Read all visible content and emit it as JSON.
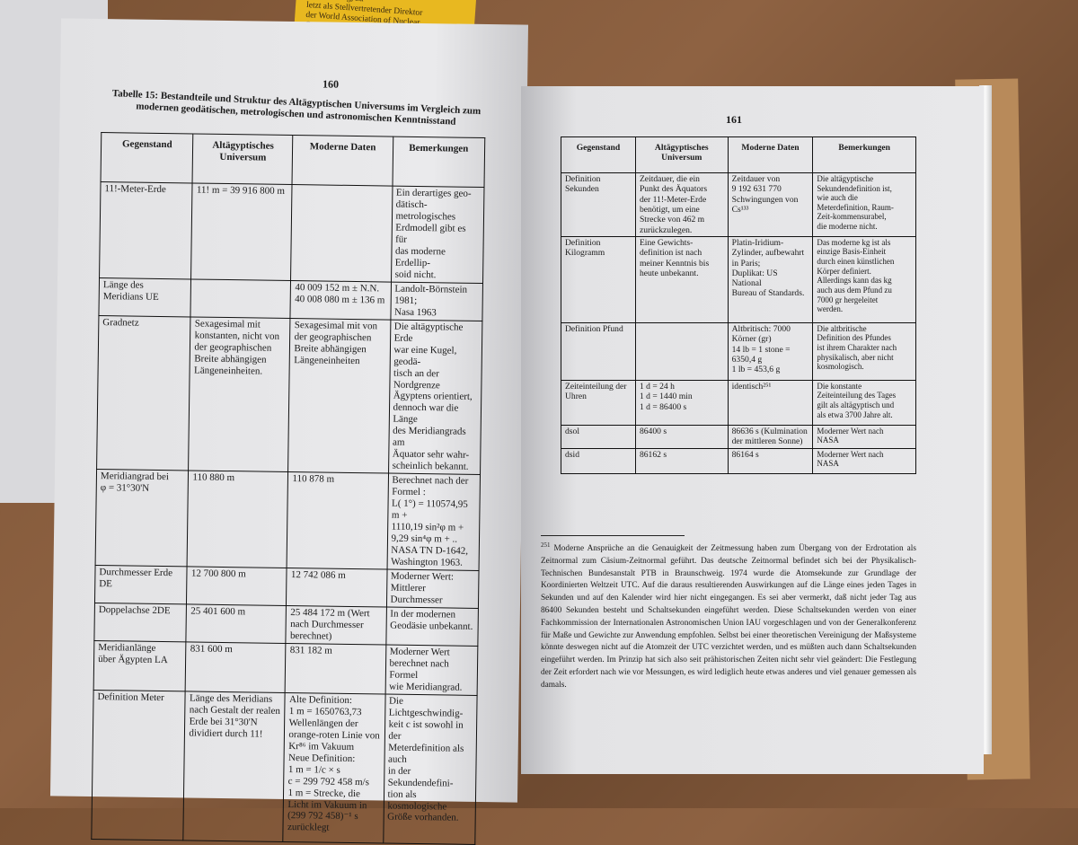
{
  "yellow_note": "...schaft tätig, zu-\nletzt als Stellvertretender Direktor\nder World Association of Nuclear\nOperators in London. Er ist Mit-\nglied nationaler und internationaler\nwissenschaftlicher Gesellschaften",
  "left_page": {
    "page_number": "160",
    "caption": "Tabelle 15: Bestandteile und Struktur des Altägyptischen Universums im Vergleich zum modernen geodätischen, metrologischen und astronomischen Kenntnisstand",
    "headers": [
      "Gegenstand",
      "Altägyptisches\nUniversum",
      "Moderne Daten",
      "Bemerkungen"
    ],
    "rows": [
      [
        "11!-Meter-Erde",
        "11! m = 39 916 800 m",
        "",
        "Ein derartiges geo-\ndätisch-metrologisches\nErdmodell gibt es für\ndas moderne Erdellip-\nsoid nicht."
      ],
      [
        "Länge des\nMeridians UE",
        "",
        "40 009 152 m ± N.N.\n40 008 080 m ± 136 m",
        "Landolt-Börnstein 1981;\nNasa 1963"
      ],
      [
        "Gradnetz",
        "Sexagesimal mit\nkonstanten, nicht von\nder geographischen\nBreite abhängigen\nLängeneinheiten.",
        "Sexagesimal mit von\nder geographischen\nBreite abhängigen\nLängeneinheiten",
        "Die altägyptische Erde\nwar eine Kugel, geodä-\ntisch an der Nordgrenze\nÄgyptens orientiert,\ndennoch war die Länge\ndes Meridiangrads am\nÄquator sehr wahr-\nscheinlich bekannt."
      ],
      [
        "Meridiangrad bei\nφ = 31°30'N",
        "110 880 m",
        "110 878 m",
        "Berechnet nach der\nFormel :\nL( 1°) = 110574,95 m +\n1110,19 sin²φ m +\n9,29 sin⁴φ m + ..\nNASA TN D-1642,\nWashington 1963."
      ],
      [
        "Durchmesser Erde\nDE",
        "12 700 800 m",
        "12 742 086 m",
        "Moderner Wert:\nMittlerer Durchmesser"
      ],
      [
        "Doppelachse 2DE",
        "25 401 600 m",
        "25 484 172 m (Wert\nnach Durchmesser\nberechnet)",
        "In der modernen\nGeodäsie unbekannt."
      ],
      [
        "Meridianlänge\nüber Ägypten LA",
        "831 600 m",
        "831 182 m",
        "Moderner Wert\nberechnet nach Formel\nwie Meridiangrad."
      ],
      [
        "Definition Meter",
        "Länge des Meridians\nnach Gestalt der realen\nErde bei 31°30'N\ndividiert durch 11!",
        "Alte Definition:\n1 m = 1650763,73\nWellenlängen der\norange-roten Linie von\nKr⁸⁶ im Vakuum\nNeue Definition:\n1 m = 1/c × s\nc = 299 792 458 m/s\n1 m = Strecke, die\nLicht im Vakuum in\n(299 792 458)⁻¹ s\nzurücklegt",
        "Die Lichtgeschwindig-\nkeit c ist sowohl in der\nMeterdefinition als auch\nin der Sekundendefini-\ntion als kosmologische\nGröße vorhanden."
      ]
    ]
  },
  "right_page": {
    "page_number": "161",
    "headers": [
      "Gegenstand",
      "Altägyptisches\nUniversum",
      "Moderne Daten",
      "Bemerkungen"
    ],
    "rows": [
      [
        "Definition\nSekunden",
        "Zeitdauer, die ein\nPunkt des Äquators\nder 11!-Meter-Erde\nbenötigt, um eine\nStrecke von 462 m\nzurückzulegen.",
        "Zeitdauer von\n9 192 631 770\nSchwingungen von\nCs¹³³",
        "Die altägyptische\nSekundendefinition ist,\nwie auch die\nMeterdefinition, Raum-\nZeit-kommensurabel,\ndie moderne nicht."
      ],
      [
        "Definition\nKilogramm",
        "Eine Gewichts-\ndefinition ist nach\nmeiner Kenntnis bis\nheute unbekannt.",
        "Platin-Iridium-\nZylinder, aufbewahrt\nin Paris;\nDuplikat: US National\nBureau of Standards.",
        "Das moderne kg ist als\neinzige Basis-Einheit\ndurch einen künstlichen\nKörper definiert.\nAllerdings kann das kg\nauch aus dem Pfund zu\n7000 gr hergeleitet\nwerden."
      ],
      [
        "Definition Pfund",
        "",
        "Altbritisch: 7000\nKörner (gr)\n14 lb = 1 stone =\n6350,4 g\n1 lb = 453,6 g",
        "Die altbritische\nDefinition des Pfundes\nist ihrem Charakter nach\nphysikalisch, aber nicht\nkosmologisch."
      ],
      [
        "Zeiteinteilung der\nUhren",
        "1 d = 24 h\n1 d = 1440 min\n1 d = 86400 s",
        "identisch²⁵¹",
        "Die konstante\nZeiteinteilung des Tages\ngilt als altägyptisch und\nals etwa 3700 Jahre alt."
      ],
      [
        "dsol",
        "86400 s",
        "86636 s (Kulmination\nder mittleren Sonne)",
        "Moderner Wert nach\nNASA"
      ],
      [
        "dsid",
        "86162 s",
        "86164 s",
        "Moderner Wert nach\nNASA"
      ]
    ],
    "footnote_number": "251",
    "footnote": "Moderne Ansprüche an die Genauigkeit der Zeitmessung haben zum Übergang von der Erdrotation als Zeitnormal zum Cäsium-Zeitnormal geführt. Das deutsche Zeitnormal befindet sich bei der Physikalisch-Technischen Bundesanstalt PTB in Braunschweig. 1974 wurde die Atomsekunde zur Grundlage der Koordinierten Weltzeit UTC. Auf die daraus resultierenden Auswirkungen auf die Länge eines jeden Tages in Sekunden und auf den Kalender wird hier nicht eingegangen. Es sei aber vermerkt, daß nicht jeder Tag aus 86400 Sekunden besteht und Schaltsekunden eingeführt werden. Diese Schaltsekunden werden von einer Fachkommission der Internationalen Astronomischen Union IAU vorgeschlagen und von der Generalkonferenz für Maße und Gewichte zur Anwendung empfohlen. Selbst bei einer theoretischen Vereinigung der Maßsysteme könnte deswegen nicht auf die Atomzeit der UTC verzichtet werden, und es müßten auch dann Schaltsekunden eingeführt werden. Im Prinzip hat sich also seit prähistorischen Zeiten nicht sehr viel geändert: Die Festlegung der Zeit erfordert nach wie vor Messungen, es wird lediglich heute etwas anderes und viel genauer gemessen als damals."
  }
}
